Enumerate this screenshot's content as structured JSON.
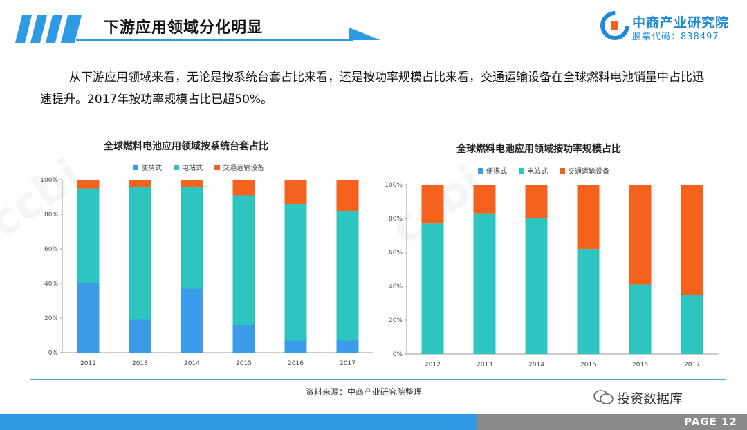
{
  "header": {
    "title": "下游应用领域分化明显",
    "logo_name": "中商产业研究院",
    "logo_code": "股票代码：838497"
  },
  "paragraph": "从下游应用领域来看，无论是按系统台套占比来看，还是按功率规模占比来看，交通运输设备在全球燃料电池销量中占比迅速提升。2017年按功率规模占比已超50%。",
  "colors": {
    "portable": "#3b9be8",
    "stationary": "#2dc5c0",
    "transport": "#f5621e",
    "accent": "#2e9ae3"
  },
  "chart_data": [
    {
      "type": "bar",
      "stacked": true,
      "title": "全球燃料电池应用领域按系统台套占比",
      "categories": [
        "2012",
        "2013",
        "2014",
        "2015",
        "2016",
        "2017"
      ],
      "series": [
        {
          "name": "便携式",
          "values": [
            40,
            19,
            37,
            16,
            7,
            7
          ]
        },
        {
          "name": "电站式",
          "values": [
            55,
            77,
            59,
            75,
            79,
            75
          ]
        },
        {
          "name": "交通运输设备",
          "values": [
            5,
            4,
            4,
            9,
            14,
            18
          ]
        }
      ],
      "yticks": [
        "0%",
        "20%",
        "40%",
        "60%",
        "80%",
        "100%"
      ],
      "ylim": [
        0,
        100
      ],
      "legend_position": "top"
    },
    {
      "type": "bar",
      "stacked": true,
      "title": "全球燃料电池应用领域按功率规模占比",
      "categories": [
        "2012",
        "2013",
        "2014",
        "2015",
        "2016",
        "2017"
      ],
      "series": [
        {
          "name": "便携式",
          "values": [
            0,
            0,
            0,
            0,
            0,
            0
          ]
        },
        {
          "name": "电站式",
          "values": [
            77,
            83,
            80,
            62,
            41,
            35
          ]
        },
        {
          "name": "交通运输设备",
          "values": [
            23,
            17,
            20,
            38,
            59,
            65
          ]
        }
      ],
      "yticks": [
        "0%",
        "20%",
        "40%",
        "60%",
        "80%",
        "100%"
      ],
      "ylim": [
        0,
        100
      ],
      "legend_position": "top"
    }
  ],
  "source": "资料来源：中商产业研究院整理",
  "wechat": "投资数据库",
  "footer": {
    "page": "PAGE 12"
  }
}
